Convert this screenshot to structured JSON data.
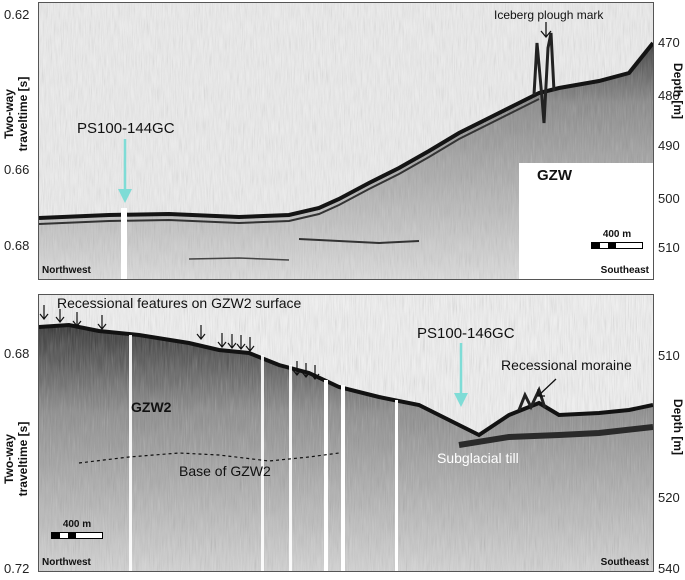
{
  "top": {
    "annotations": {
      "iceberg": "Iceberg plough mark",
      "core": "PS100-144GC",
      "gzw": "GZW",
      "west": "Northwest",
      "east": "Southeast",
      "scale": "400 m"
    },
    "left_axis": {
      "title_line1": "Two-way",
      "title_line2": "traveltime [s]",
      "ticks": [
        "0.62",
        "0.66",
        "0.68"
      ]
    },
    "right_axis": {
      "title": "Depth [m]",
      "ticks": [
        "470",
        "480",
        "490",
        "500",
        "510"
      ]
    }
  },
  "bottom": {
    "annotations": {
      "recessional": "Recessional features on GZW2 surface",
      "core": "PS100-146GC",
      "moraine": "Recessional moraine",
      "gzw2": "GZW2",
      "base": "Base of GZW2",
      "till": "Subglacial till",
      "west": "Northwest",
      "east": "Southeast",
      "scale": "400 m"
    },
    "left_axis": {
      "title_line1": "Two-way",
      "title_line2": "traveltime [s]",
      "ticks": [
        "0.68",
        "0.72"
      ]
    },
    "right_axis": {
      "title": "Depth [m]",
      "ticks": [
        "510",
        "520",
        "540"
      ]
    }
  },
  "colors": {
    "core_arrow": "#7fdcd6",
    "seafloor": "#1a1a1a",
    "background": "#e9e9e9"
  }
}
